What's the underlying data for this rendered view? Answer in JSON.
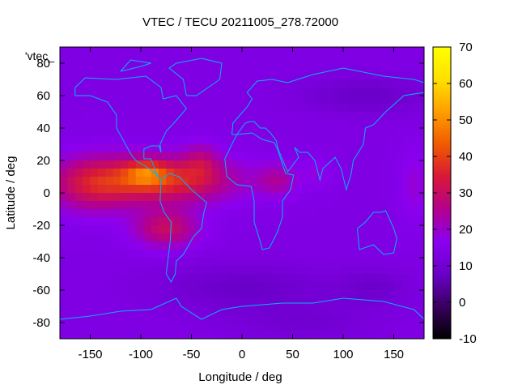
{
  "chart_data": {
    "type": "heatmap",
    "title": "VTEC / TECU 20211005_278.72000",
    "xlabel": "Longitude / deg",
    "ylabel": "Latitude / deg",
    "series_label": "'vtec_",
    "xlim": [
      -180,
      180
    ],
    "ylim": [
      -90,
      90
    ],
    "xticks": [
      -150,
      -100,
      -50,
      0,
      50,
      100,
      150
    ],
    "yticks": [
      -80,
      -60,
      -40,
      -20,
      0,
      20,
      40,
      60,
      80
    ],
    "colorbar": {
      "range": [
        -10,
        70
      ],
      "ticks": [
        -10,
        0,
        10,
        20,
        30,
        40,
        50,
        60,
        70
      ],
      "palette": [
        "#000000",
        "#3a0060",
        "#6a00c8",
        "#8a00f0",
        "#b4008c",
        "#d81838",
        "#f05a00",
        "#ff9e00",
        "#ffe000",
        "#ffff00"
      ]
    },
    "background_vtec": 14,
    "features": [
      {
        "lon": -80,
        "lat": 8,
        "sigma_lon": 50,
        "sigma_lat": 10,
        "amp": 24
      },
      {
        "lon": -150,
        "lat": 5,
        "sigma_lon": 30,
        "sigma_lat": 12,
        "amp": 14
      },
      {
        "lon": -75,
        "lat": -22,
        "sigma_lon": 22,
        "sigma_lat": 8,
        "amp": 16
      },
      {
        "lon": -95,
        "lat": 12,
        "sigma_lon": 14,
        "sigma_lat": 5,
        "amp": 14
      },
      {
        "lon": -40,
        "lat": 20,
        "sigma_lon": 12,
        "sigma_lat": 8,
        "amp": 8
      },
      {
        "lon": 35,
        "lat": 8,
        "sigma_lon": 14,
        "sigma_lat": 7,
        "amp": 9
      },
      {
        "lon": 75,
        "lat": 12,
        "sigma_lon": 10,
        "sigma_lat": 6,
        "amp": 4
      },
      {
        "lon": 120,
        "lat": 60,
        "sigma_lon": 45,
        "sigma_lat": 8,
        "amp": -6
      },
      {
        "lon": 0,
        "lat": -58,
        "sigma_lon": 60,
        "sigma_lat": 10,
        "amp": -6
      },
      {
        "lon": 130,
        "lat": -58,
        "sigma_lon": 25,
        "sigma_lat": 8,
        "amp": -5
      },
      {
        "lon": 60,
        "lat": -80,
        "sigma_lon": 50,
        "sigma_lat": 8,
        "amp": -4
      },
      {
        "lon": 170,
        "lat": 5,
        "sigma_lon": 10,
        "sigma_lat": 15,
        "amp": 5
      }
    ],
    "coastlines": [
      {
        "name": "north-america",
        "points": [
          [
            -165,
            65
          ],
          [
            -155,
            71
          ],
          [
            -125,
            70
          ],
          [
            -95,
            72
          ],
          [
            -80,
            65
          ],
          [
            -78,
            58
          ],
          [
            -65,
            60
          ],
          [
            -55,
            52
          ],
          [
            -66,
            44
          ],
          [
            -75,
            38
          ],
          [
            -81,
            30
          ],
          [
            -80,
            25
          ],
          [
            -82,
            29
          ],
          [
            -90,
            29
          ],
          [
            -97,
            27
          ],
          [
            -97,
            21
          ],
          [
            -90,
            21
          ],
          [
            -87,
            16
          ],
          [
            -83,
            10
          ],
          [
            -80,
            8
          ],
          [
            -86,
            12
          ],
          [
            -92,
            15
          ],
          [
            -105,
            20
          ],
          [
            -110,
            24
          ],
          [
            -117,
            32
          ],
          [
            -124,
            40
          ],
          [
            -124,
            48
          ],
          [
            -133,
            56
          ],
          [
            -150,
            60
          ],
          [
            -165,
            60
          ],
          [
            -165,
            65
          ]
        ]
      },
      {
        "name": "greenland",
        "points": [
          [
            -55,
            60
          ],
          [
            -45,
            60
          ],
          [
            -22,
            70
          ],
          [
            -20,
            80
          ],
          [
            -40,
            83
          ],
          [
            -65,
            80
          ],
          [
            -72,
            77
          ],
          [
            -58,
            70
          ],
          [
            -55,
            60
          ]
        ]
      },
      {
        "name": "south-america",
        "points": [
          [
            -80,
            8
          ],
          [
            -72,
            12
          ],
          [
            -62,
            10
          ],
          [
            -50,
            2
          ],
          [
            -35,
            -6
          ],
          [
            -38,
            -13
          ],
          [
            -40,
            -22
          ],
          [
            -48,
            -27
          ],
          [
            -58,
            -38
          ],
          [
            -65,
            -42
          ],
          [
            -66,
            -50
          ],
          [
            -70,
            -55
          ],
          [
            -75,
            -50
          ],
          [
            -73,
            -40
          ],
          [
            -71,
            -30
          ],
          [
            -70,
            -18
          ],
          [
            -77,
            -12
          ],
          [
            -81,
            -5
          ],
          [
            -80,
            8
          ]
        ]
      },
      {
        "name": "eurasia",
        "points": [
          [
            -10,
            36
          ],
          [
            -9,
            43
          ],
          [
            -2,
            48
          ],
          [
            5,
            53
          ],
          [
            10,
            58
          ],
          [
            5,
            62
          ],
          [
            15,
            69
          ],
          [
            30,
            70
          ],
          [
            45,
            68
          ],
          [
            70,
            73
          ],
          [
            100,
            77
          ],
          [
            140,
            72
          ],
          [
            170,
            70
          ],
          [
            180,
            68
          ],
          [
            180,
            62
          ],
          [
            160,
            60
          ],
          [
            142,
            50
          ],
          [
            130,
            42
          ],
          [
            122,
            40
          ],
          [
            120,
            30
          ],
          [
            110,
            20
          ],
          [
            108,
            12
          ],
          [
            103,
            2
          ],
          [
            98,
            15
          ],
          [
            92,
            22
          ],
          [
            80,
            15
          ],
          [
            77,
            8
          ],
          [
            72,
            20
          ],
          [
            65,
            25
          ],
          [
            57,
            25
          ],
          [
            52,
            28
          ],
          [
            56,
            22
          ],
          [
            45,
            13
          ],
          [
            35,
            28
          ],
          [
            34,
            32
          ],
          [
            28,
            37
          ],
          [
            23,
            40
          ],
          [
            18,
            40
          ],
          [
            12,
            44
          ],
          [
            8,
            44
          ],
          [
            3,
            43
          ],
          [
            -5,
            36
          ],
          [
            -10,
            36
          ]
        ]
      },
      {
        "name": "africa",
        "points": [
          [
            -17,
            21
          ],
          [
            -10,
            30
          ],
          [
            -5,
            36
          ],
          [
            10,
            37
          ],
          [
            20,
            33
          ],
          [
            32,
            31
          ],
          [
            35,
            27
          ],
          [
            43,
            12
          ],
          [
            51,
            11
          ],
          [
            48,
            2
          ],
          [
            40,
            -5
          ],
          [
            40,
            -15
          ],
          [
            35,
            -24
          ],
          [
            32,
            -28
          ],
          [
            27,
            -34
          ],
          [
            20,
            -35
          ],
          [
            18,
            -30
          ],
          [
            12,
            -18
          ],
          [
            12,
            -5
          ],
          [
            9,
            4
          ],
          [
            -5,
            5
          ],
          [
            -15,
            10
          ],
          [
            -17,
            21
          ]
        ]
      },
      {
        "name": "australia",
        "points": [
          [
            114,
            -22
          ],
          [
            122,
            -18
          ],
          [
            130,
            -12
          ],
          [
            137,
            -12
          ],
          [
            142,
            -11
          ],
          [
            145,
            -15
          ],
          [
            150,
            -22
          ],
          [
            153,
            -28
          ],
          [
            150,
            -37
          ],
          [
            140,
            -38
          ],
          [
            135,
            -35
          ],
          [
            130,
            -32
          ],
          [
            116,
            -35
          ],
          [
            114,
            -22
          ]
        ]
      },
      {
        "name": "antarctica",
        "points": [
          [
            -180,
            -78
          ],
          [
            -150,
            -76
          ],
          [
            -120,
            -73
          ],
          [
            -90,
            -72
          ],
          [
            -65,
            -65
          ],
          [
            -60,
            -70
          ],
          [
            -40,
            -78
          ],
          [
            -20,
            -72
          ],
          [
            0,
            -70
          ],
          [
            40,
            -68
          ],
          [
            70,
            -68
          ],
          [
            100,
            -65
          ],
          [
            140,
            -67
          ],
          [
            170,
            -72
          ],
          [
            180,
            -78
          ]
        ]
      },
      {
        "name": "greenland-minor",
        "points": [
          [
            -120,
            75
          ],
          [
            -100,
            78
          ],
          [
            -90,
            80
          ],
          [
            -110,
            82
          ],
          [
            -120,
            75
          ]
        ]
      }
    ]
  }
}
